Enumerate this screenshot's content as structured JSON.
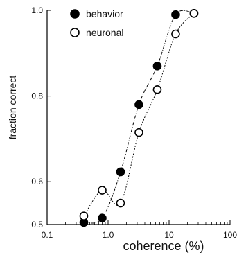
{
  "chart_data": {
    "type": "scatter",
    "xlabel": "coherence (%)",
    "ylabel": "fraction correct",
    "xscale": "log",
    "xlim": [
      0.1,
      100
    ],
    "ylim": [
      0.5,
      1.0
    ],
    "x_ticks": [
      {
        "value": 0.1,
        "label": "0.1"
      },
      {
        "value": 1,
        "label": "1.0"
      },
      {
        "value": 10,
        "label": "10"
      },
      {
        "value": 100,
        "label": "100"
      }
    ],
    "y_ticks": [
      {
        "value": 0.5,
        "label": "0.5"
      },
      {
        "value": 0.6,
        "label": "0.6"
      },
      {
        "value": 0.8,
        "label": "0.8"
      },
      {
        "value": 1.0,
        "label": "1.0"
      }
    ],
    "legend_position": "top-left",
    "series": [
      {
        "name": "behavior",
        "marker": "filled-circle",
        "fit_line": "dash-dot",
        "color": "#000000",
        "points": [
          {
            "x": 0.4,
            "y": 0.505
          },
          {
            "x": 0.8,
            "y": 0.515
          },
          {
            "x": 1.6,
            "y": 0.623
          },
          {
            "x": 3.2,
            "y": 0.78
          },
          {
            "x": 6.4,
            "y": 0.87
          },
          {
            "x": 12.8,
            "y": 0.99
          },
          {
            "x": 25.6,
            "y": 0.993
          }
        ]
      },
      {
        "name": "neuronal",
        "marker": "open-circle",
        "fit_line": "dotted",
        "color": "#000000",
        "points": [
          {
            "x": 0.4,
            "y": 0.52
          },
          {
            "x": 0.8,
            "y": 0.58
          },
          {
            "x": 1.6,
            "y": 0.55
          },
          {
            "x": 3.2,
            "y": 0.715
          },
          {
            "x": 6.4,
            "y": 0.815
          },
          {
            "x": 12.8,
            "y": 0.945
          },
          {
            "x": 25.6,
            "y": 0.993
          }
        ]
      }
    ]
  }
}
